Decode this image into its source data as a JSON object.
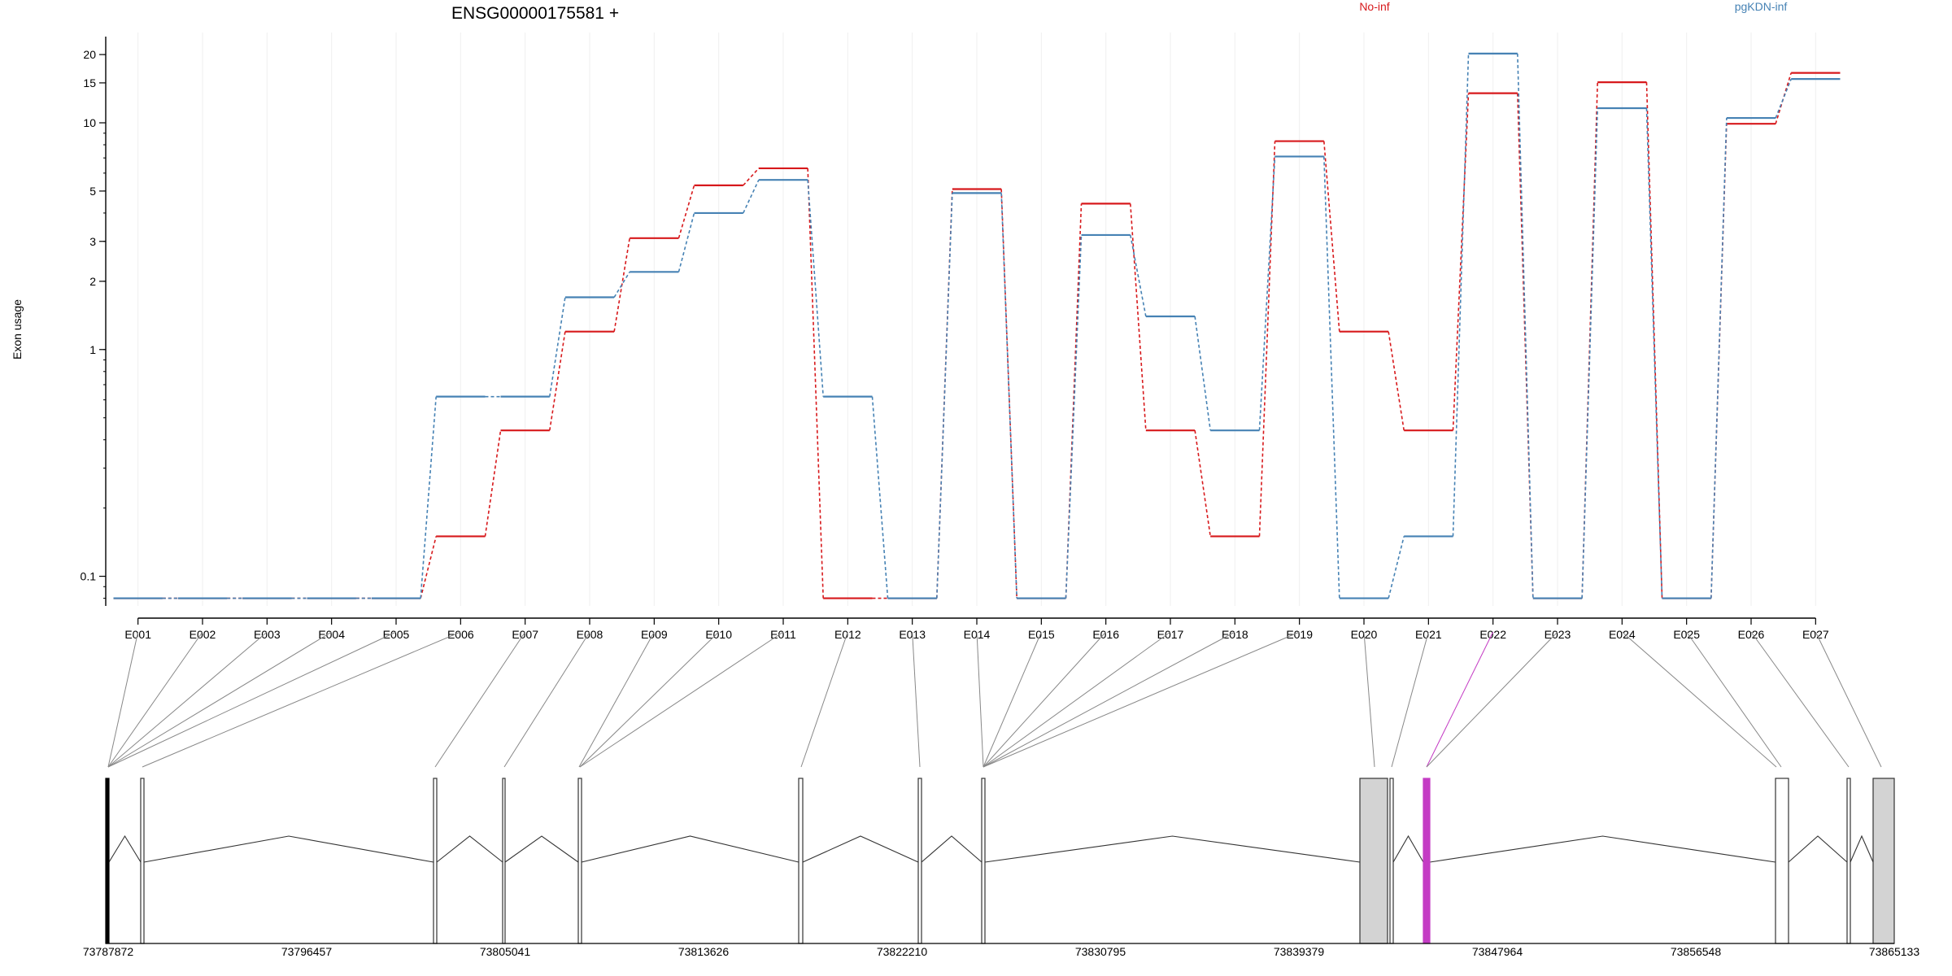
{
  "chart_data": {
    "type": "line",
    "title": "ENSG00000175581 +",
    "ylabel": "Exon usage",
    "xlabel": "",
    "y_scale": "log",
    "ylim": [
      0.074,
      24
    ],
    "y_ticks": [
      0.1,
      1,
      2,
      3,
      5,
      10,
      15,
      20
    ],
    "y_tick_labels": [
      "0.1",
      "1",
      "2",
      "3",
      "5",
      "10",
      "15",
      "20"
    ],
    "categories": [
      "E001",
      "E002",
      "E003",
      "E004",
      "E005",
      "E006",
      "E007",
      "E008",
      "E009",
      "E010",
      "E011",
      "E012",
      "E013",
      "E014",
      "E015",
      "E016",
      "E017",
      "E018",
      "E019",
      "E020",
      "E021",
      "E022",
      "E023",
      "E024",
      "E025",
      "E026",
      "E027"
    ],
    "series": [
      {
        "name": "No-inf",
        "color": "#d7191c",
        "values": [
          0.08,
          0.08,
          0.08,
          0.08,
          0.08,
          0.15,
          0.44,
          1.2,
          3.1,
          5.3,
          6.3,
          0.08,
          0.08,
          5.1,
          0.08,
          4.4,
          0.44,
          0.15,
          8.3,
          1.2,
          0.44,
          13.5,
          0.08,
          15.1,
          0.08,
          9.9,
          16.6
        ]
      },
      {
        "name": "pgKDN-inf",
        "color": "#4682b4",
        "values": [
          0.08,
          0.08,
          0.08,
          0.08,
          0.08,
          0.62,
          0.62,
          1.7,
          2.2,
          4.0,
          5.6,
          0.62,
          0.08,
          4.9,
          0.08,
          3.2,
          1.4,
          0.44,
          7.1,
          0.08,
          0.15,
          20.2,
          0.08,
          11.6,
          0.08,
          10.5,
          15.6
        ]
      }
    ],
    "legend_position": "top",
    "grid": "vertical faint",
    "genomic_axis": {
      "tick_labels": [
        "73787872",
        "73796457",
        "73805041",
        "73813626",
        "73822210",
        "73830795",
        "73839379",
        "73847964",
        "73856548",
        "73865133"
      ]
    },
    "highlight_color": "#c43cc4",
    "highlighted_exon": "E022"
  }
}
